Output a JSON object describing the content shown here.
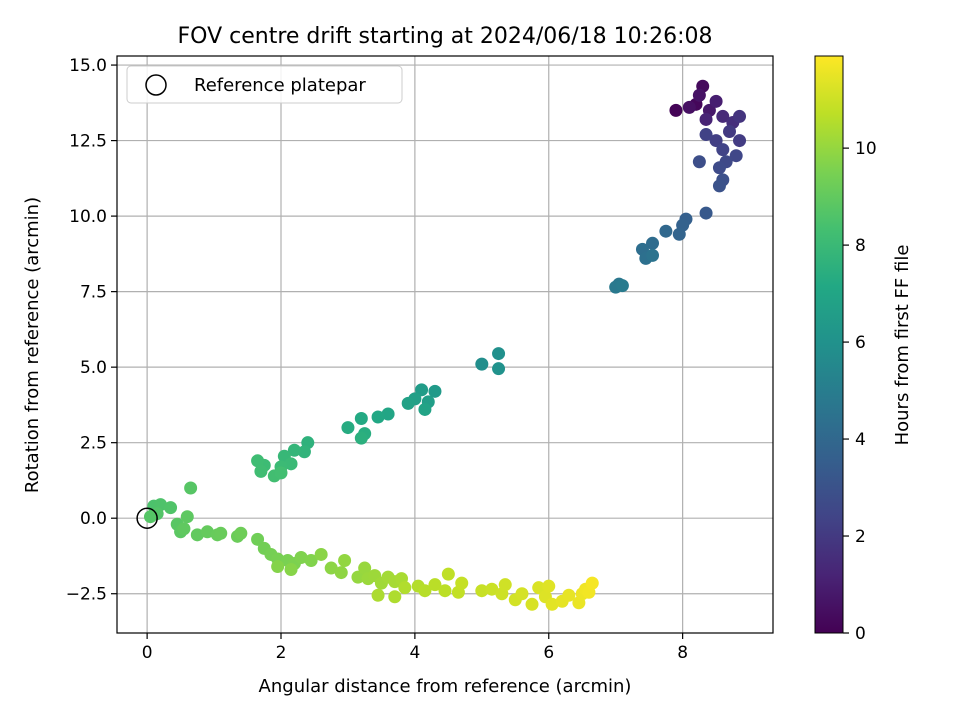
{
  "chart_data": {
    "type": "scatter",
    "title": "FOV centre drift starting at 2024/06/18 10:26:08",
    "xlabel": "Angular distance from reference (arcmin)",
    "ylabel": "Rotation from reference (arcmin)",
    "colorbar_label": "Hours from first FF file",
    "xlim": [
      -0.45,
      9.35
    ],
    "ylim": [
      -3.8,
      15.3
    ],
    "clim": [
      0,
      11.9
    ],
    "x_ticks": [
      0,
      2,
      4,
      6,
      8
    ],
    "y_ticks": [
      -2.5,
      0.0,
      2.5,
      5.0,
      7.5,
      10.0,
      12.5,
      15.0
    ],
    "x_tick_labels": [
      "0",
      "2",
      "4",
      "6",
      "8"
    ],
    "y_tick_labels": [
      "−2.5",
      "0.0",
      "2.5",
      "5.0",
      "7.5",
      "10.0",
      "12.5",
      "15.0"
    ],
    "colorbar_ticks": [
      0,
      2,
      4,
      6,
      8,
      10
    ],
    "colorbar_tick_labels": [
      "0",
      "2",
      "4",
      "6",
      "8",
      "10"
    ],
    "colormap": "viridis",
    "grid": true,
    "legend": {
      "placement": "upper-left",
      "entries": [
        "Reference platepar"
      ]
    },
    "reference_point": {
      "x": 0,
      "y": 0
    },
    "points": [
      {
        "x": 7.9,
        "y": 13.5,
        "h": 0.1
      },
      {
        "x": 8.2,
        "y": 13.7,
        "h": 0.2
      },
      {
        "x": 8.3,
        "y": 14.3,
        "h": 0.3
      },
      {
        "x": 8.1,
        "y": 13.6,
        "h": 0.5
      },
      {
        "x": 8.25,
        "y": 14.0,
        "h": 0.6
      },
      {
        "x": 8.4,
        "y": 13.5,
        "h": 0.8
      },
      {
        "x": 8.5,
        "y": 13.8,
        "h": 1.0
      },
      {
        "x": 8.35,
        "y": 13.2,
        "h": 1.2
      },
      {
        "x": 8.6,
        "y": 13.3,
        "h": 1.4
      },
      {
        "x": 8.75,
        "y": 13.1,
        "h": 1.6
      },
      {
        "x": 8.85,
        "y": 13.3,
        "h": 1.8
      },
      {
        "x": 8.7,
        "y": 12.8,
        "h": 2.0
      },
      {
        "x": 8.85,
        "y": 12.5,
        "h": 2.1
      },
      {
        "x": 8.5,
        "y": 12.5,
        "h": 2.2
      },
      {
        "x": 8.35,
        "y": 12.7,
        "h": 2.3
      },
      {
        "x": 8.6,
        "y": 12.2,
        "h": 2.4
      },
      {
        "x": 8.8,
        "y": 12.0,
        "h": 2.5
      },
      {
        "x": 8.65,
        "y": 11.8,
        "h": 2.6
      },
      {
        "x": 8.55,
        "y": 11.6,
        "h": 2.7
      },
      {
        "x": 8.25,
        "y": 11.8,
        "h": 2.8
      },
      {
        "x": 8.6,
        "y": 11.2,
        "h": 2.9
      },
      {
        "x": 8.55,
        "y": 11.0,
        "h": 3.0
      },
      {
        "x": 8.35,
        "y": 10.1,
        "h": 3.3
      },
      {
        "x": 8.05,
        "y": 9.9,
        "h": 3.6
      },
      {
        "x": 8.0,
        "y": 9.7,
        "h": 3.7
      },
      {
        "x": 7.95,
        "y": 9.4,
        "h": 3.8
      },
      {
        "x": 7.75,
        "y": 9.5,
        "h": 4.0
      },
      {
        "x": 7.55,
        "y": 9.1,
        "h": 4.2
      },
      {
        "x": 7.4,
        "y": 8.9,
        "h": 4.3
      },
      {
        "x": 7.45,
        "y": 8.6,
        "h": 4.4
      },
      {
        "x": 7.55,
        "y": 8.7,
        "h": 4.5
      },
      {
        "x": 7.05,
        "y": 7.75,
        "h": 4.7
      },
      {
        "x": 7.0,
        "y": 7.65,
        "h": 4.8
      },
      {
        "x": 7.1,
        "y": 7.7,
        "h": 4.9
      },
      {
        "x": 5.0,
        "y": 5.1,
        "h": 5.8
      },
      {
        "x": 5.25,
        "y": 5.45,
        "h": 5.9
      },
      {
        "x": 5.25,
        "y": 4.95,
        "h": 6.0
      },
      {
        "x": 4.3,
        "y": 4.2,
        "h": 6.4
      },
      {
        "x": 4.1,
        "y": 4.25,
        "h": 6.5
      },
      {
        "x": 4.2,
        "y": 3.85,
        "h": 6.6
      },
      {
        "x": 4.0,
        "y": 3.95,
        "h": 6.7
      },
      {
        "x": 3.9,
        "y": 3.8,
        "h": 6.8
      },
      {
        "x": 4.15,
        "y": 3.6,
        "h": 6.9
      },
      {
        "x": 3.6,
        "y": 3.45,
        "h": 7.0
      },
      {
        "x": 3.45,
        "y": 3.35,
        "h": 7.1
      },
      {
        "x": 3.2,
        "y": 3.3,
        "h": 7.2
      },
      {
        "x": 3.0,
        "y": 3.0,
        "h": 7.3
      },
      {
        "x": 3.25,
        "y": 2.8,
        "h": 7.4
      },
      {
        "x": 3.2,
        "y": 2.65,
        "h": 7.5
      },
      {
        "x": 2.4,
        "y": 2.5,
        "h": 7.6
      },
      {
        "x": 2.35,
        "y": 2.2,
        "h": 7.7
      },
      {
        "x": 2.2,
        "y": 2.25,
        "h": 7.8
      },
      {
        "x": 2.05,
        "y": 2.05,
        "h": 7.9
      },
      {
        "x": 2.15,
        "y": 1.8,
        "h": 8.0
      },
      {
        "x": 2.0,
        "y": 1.7,
        "h": 8.05
      },
      {
        "x": 1.75,
        "y": 1.75,
        "h": 8.1
      },
      {
        "x": 1.65,
        "y": 1.9,
        "h": 8.15
      },
      {
        "x": 1.7,
        "y": 1.55,
        "h": 8.2
      },
      {
        "x": 1.9,
        "y": 1.4,
        "h": 8.25
      },
      {
        "x": 2.0,
        "y": 1.5,
        "h": 8.3
      },
      {
        "x": 0.1,
        "y": 0.4,
        "h": 8.5
      },
      {
        "x": 0.2,
        "y": 0.45,
        "h": 8.55
      },
      {
        "x": 0.35,
        "y": 0.35,
        "h": 8.6
      },
      {
        "x": 0.15,
        "y": 0.15,
        "h": 8.65
      },
      {
        "x": 0.05,
        "y": 0.05,
        "h": 8.7
      },
      {
        "x": 0.65,
        "y": 1.0,
        "h": 8.75
      },
      {
        "x": 0.45,
        "y": -0.2,
        "h": 8.8
      },
      {
        "x": 0.5,
        "y": -0.45,
        "h": 8.85
      },
      {
        "x": 0.6,
        "y": 0.05,
        "h": 8.9
      },
      {
        "x": 0.55,
        "y": -0.35,
        "h": 8.95
      },
      {
        "x": 0.75,
        "y": -0.55,
        "h": 9.0
      },
      {
        "x": 0.9,
        "y": -0.45,
        "h": 9.05
      },
      {
        "x": 1.05,
        "y": -0.55,
        "h": 9.1
      },
      {
        "x": 1.1,
        "y": -0.5,
        "h": 9.15
      },
      {
        "x": 1.35,
        "y": -0.6,
        "h": 9.2
      },
      {
        "x": 1.4,
        "y": -0.5,
        "h": 9.25
      },
      {
        "x": 1.65,
        "y": -0.7,
        "h": 9.3
      },
      {
        "x": 1.75,
        "y": -1.0,
        "h": 9.35
      },
      {
        "x": 1.85,
        "y": -1.2,
        "h": 9.4
      },
      {
        "x": 1.95,
        "y": -1.35,
        "h": 9.45
      },
      {
        "x": 2.1,
        "y": -1.4,
        "h": 9.5
      },
      {
        "x": 2.2,
        "y": -1.5,
        "h": 9.55
      },
      {
        "x": 2.3,
        "y": -1.3,
        "h": 9.6
      },
      {
        "x": 2.45,
        "y": -1.4,
        "h": 9.65
      },
      {
        "x": 1.95,
        "y": -1.6,
        "h": 9.7
      },
      {
        "x": 2.15,
        "y": -1.7,
        "h": 9.75
      },
      {
        "x": 2.6,
        "y": -1.2,
        "h": 9.8
      },
      {
        "x": 2.75,
        "y": -1.65,
        "h": 9.85
      },
      {
        "x": 2.9,
        "y": -1.8,
        "h": 9.9
      },
      {
        "x": 2.95,
        "y": -1.4,
        "h": 9.95
      },
      {
        "x": 3.15,
        "y": -1.95,
        "h": 10.0
      },
      {
        "x": 3.25,
        "y": -1.65,
        "h": 10.05
      },
      {
        "x": 3.3,
        "y": -2.0,
        "h": 10.1
      },
      {
        "x": 3.4,
        "y": -1.9,
        "h": 10.15
      },
      {
        "x": 3.5,
        "y": -2.15,
        "h": 10.2
      },
      {
        "x": 3.6,
        "y": -1.95,
        "h": 10.25
      },
      {
        "x": 3.7,
        "y": -2.1,
        "h": 10.3
      },
      {
        "x": 3.8,
        "y": -2.0,
        "h": 10.35
      },
      {
        "x": 3.45,
        "y": -2.55,
        "h": 10.4
      },
      {
        "x": 3.7,
        "y": -2.6,
        "h": 10.45
      },
      {
        "x": 3.85,
        "y": -2.3,
        "h": 10.5
      },
      {
        "x": 4.05,
        "y": -2.25,
        "h": 10.55
      },
      {
        "x": 4.15,
        "y": -2.4,
        "h": 10.6
      },
      {
        "x": 4.3,
        "y": -2.2,
        "h": 10.65
      },
      {
        "x": 4.45,
        "y": -2.4,
        "h": 10.7
      },
      {
        "x": 4.5,
        "y": -1.85,
        "h": 10.75
      },
      {
        "x": 4.65,
        "y": -2.45,
        "h": 10.8
      },
      {
        "x": 4.7,
        "y": -2.15,
        "h": 10.85
      },
      {
        "x": 5.0,
        "y": -2.4,
        "h": 10.9
      },
      {
        "x": 5.15,
        "y": -2.35,
        "h": 10.95
      },
      {
        "x": 5.3,
        "y": -2.5,
        "h": 11.0
      },
      {
        "x": 5.35,
        "y": -2.2,
        "h": 11.05
      },
      {
        "x": 5.5,
        "y": -2.7,
        "h": 11.1
      },
      {
        "x": 5.6,
        "y": -2.5,
        "h": 11.15
      },
      {
        "x": 5.75,
        "y": -2.85,
        "h": 11.2
      },
      {
        "x": 5.85,
        "y": -2.3,
        "h": 11.25
      },
      {
        "x": 5.95,
        "y": -2.6,
        "h": 11.3
      },
      {
        "x": 6.0,
        "y": -2.25,
        "h": 11.35
      },
      {
        "x": 6.05,
        "y": -2.85,
        "h": 11.4
      },
      {
        "x": 6.2,
        "y": -2.75,
        "h": 11.45
      },
      {
        "x": 6.3,
        "y": -2.55,
        "h": 11.5
      },
      {
        "x": 6.45,
        "y": -2.8,
        "h": 11.55
      },
      {
        "x": 6.5,
        "y": -2.5,
        "h": 11.6
      },
      {
        "x": 6.55,
        "y": -2.35,
        "h": 11.65
      },
      {
        "x": 6.6,
        "y": -2.45,
        "h": 11.7
      },
      {
        "x": 6.65,
        "y": -2.15,
        "h": 11.75
      }
    ]
  }
}
